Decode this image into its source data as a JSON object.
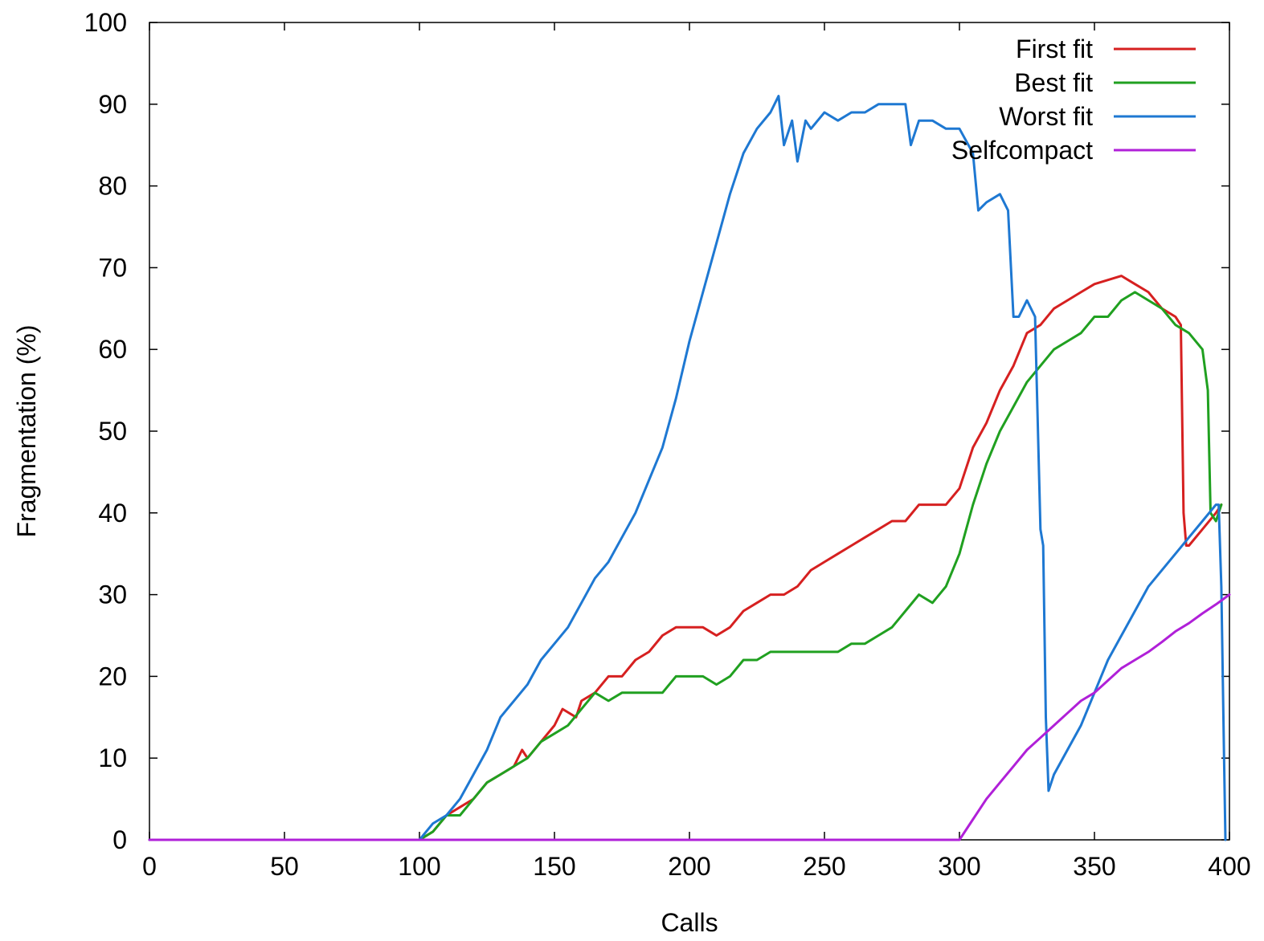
{
  "chart_data": {
    "type": "line",
    "title": "",
    "xlabel": "Calls",
    "ylabel": "Fragmentation (%)",
    "xlim": [
      0,
      400
    ],
    "ylim": [
      0,
      100
    ],
    "xticks": [
      0,
      50,
      100,
      150,
      200,
      250,
      300,
      350,
      400
    ],
    "yticks": [
      0,
      10,
      20,
      30,
      40,
      50,
      60,
      70,
      80,
      90,
      100
    ],
    "grid": false,
    "legend_position": "top-right",
    "series": [
      {
        "name": "First fit",
        "color": "#d62020",
        "points": [
          [
            0,
            0
          ],
          [
            100,
            0
          ],
          [
            105,
            1
          ],
          [
            110,
            3
          ],
          [
            115,
            4
          ],
          [
            120,
            5
          ],
          [
            125,
            7
          ],
          [
            130,
            8
          ],
          [
            135,
            9
          ],
          [
            138,
            11
          ],
          [
            140,
            10
          ],
          [
            145,
            12
          ],
          [
            150,
            14
          ],
          [
            153,
            16
          ],
          [
            158,
            15
          ],
          [
            160,
            17
          ],
          [
            165,
            18
          ],
          [
            170,
            20
          ],
          [
            175,
            20
          ],
          [
            180,
            22
          ],
          [
            185,
            23
          ],
          [
            190,
            25
          ],
          [
            195,
            26
          ],
          [
            200,
            26
          ],
          [
            205,
            26
          ],
          [
            210,
            25
          ],
          [
            215,
            26
          ],
          [
            220,
            28
          ],
          [
            225,
            29
          ],
          [
            230,
            30
          ],
          [
            235,
            30
          ],
          [
            240,
            31
          ],
          [
            245,
            33
          ],
          [
            250,
            34
          ],
          [
            255,
            35
          ],
          [
            260,
            36
          ],
          [
            265,
            37
          ],
          [
            270,
            38
          ],
          [
            275,
            39
          ],
          [
            280,
            39
          ],
          [
            285,
            41
          ],
          [
            290,
            41
          ],
          [
            295,
            41
          ],
          [
            300,
            43
          ],
          [
            305,
            48
          ],
          [
            310,
            51
          ],
          [
            315,
            55
          ],
          [
            320,
            58
          ],
          [
            325,
            62
          ],
          [
            330,
            63
          ],
          [
            335,
            65
          ],
          [
            340,
            66
          ],
          [
            345,
            67
          ],
          [
            350,
            68
          ],
          [
            355,
            68.5
          ],
          [
            360,
            69
          ],
          [
            365,
            68
          ],
          [
            370,
            67
          ],
          [
            375,
            65
          ],
          [
            380,
            64
          ],
          [
            382,
            63
          ],
          [
            383,
            40
          ],
          [
            384,
            36
          ],
          [
            385,
            36
          ],
          [
            390,
            38
          ],
          [
            395,
            40
          ],
          [
            397,
            41
          ]
        ]
      },
      {
        "name": "Best fit",
        "color": "#20a020",
        "points": [
          [
            0,
            0
          ],
          [
            100,
            0
          ],
          [
            105,
            1
          ],
          [
            110,
            3
          ],
          [
            115,
            3
          ],
          [
            120,
            5
          ],
          [
            125,
            7
          ],
          [
            130,
            8
          ],
          [
            135,
            9
          ],
          [
            140,
            10
          ],
          [
            145,
            12
          ],
          [
            150,
            13
          ],
          [
            155,
            14
          ],
          [
            160,
            16
          ],
          [
            165,
            18
          ],
          [
            170,
            17
          ],
          [
            175,
            18
          ],
          [
            180,
            18
          ],
          [
            185,
            18
          ],
          [
            190,
            18
          ],
          [
            195,
            20
          ],
          [
            200,
            20
          ],
          [
            205,
            20
          ],
          [
            210,
            19
          ],
          [
            215,
            20
          ],
          [
            220,
            22
          ],
          [
            225,
            22
          ],
          [
            230,
            23
          ],
          [
            235,
            23
          ],
          [
            240,
            23
          ],
          [
            245,
            23
          ],
          [
            250,
            23
          ],
          [
            255,
            23
          ],
          [
            260,
            24
          ],
          [
            265,
            24
          ],
          [
            270,
            25
          ],
          [
            275,
            26
          ],
          [
            280,
            28
          ],
          [
            285,
            30
          ],
          [
            290,
            29
          ],
          [
            295,
            31
          ],
          [
            300,
            35
          ],
          [
            305,
            41
          ],
          [
            310,
            46
          ],
          [
            315,
            50
          ],
          [
            320,
            53
          ],
          [
            325,
            56
          ],
          [
            330,
            58
          ],
          [
            335,
            60
          ],
          [
            340,
            61
          ],
          [
            345,
            62
          ],
          [
            350,
            64
          ],
          [
            355,
            64
          ],
          [
            360,
            66
          ],
          [
            365,
            67
          ],
          [
            370,
            66
          ],
          [
            375,
            65
          ],
          [
            380,
            63
          ],
          [
            385,
            62
          ],
          [
            390,
            60
          ],
          [
            392,
            55
          ],
          [
            393,
            40
          ],
          [
            395,
            39
          ],
          [
            397,
            41
          ]
        ]
      },
      {
        "name": "Worst fit",
        "color": "#1e78d2",
        "points": [
          [
            0,
            0
          ],
          [
            100,
            0
          ],
          [
            105,
            2
          ],
          [
            110,
            3
          ],
          [
            115,
            5
          ],
          [
            120,
            8
          ],
          [
            125,
            11
          ],
          [
            130,
            15
          ],
          [
            135,
            17
          ],
          [
            140,
            19
          ],
          [
            145,
            22
          ],
          [
            150,
            24
          ],
          [
            155,
            26
          ],
          [
            160,
            29
          ],
          [
            165,
            32
          ],
          [
            170,
            34
          ],
          [
            175,
            37
          ],
          [
            180,
            40
          ],
          [
            185,
            44
          ],
          [
            190,
            48
          ],
          [
            195,
            54
          ],
          [
            200,
            61
          ],
          [
            205,
            67
          ],
          [
            210,
            73
          ],
          [
            215,
            79
          ],
          [
            220,
            84
          ],
          [
            225,
            87
          ],
          [
            230,
            89
          ],
          [
            233,
            91
          ],
          [
            235,
            85
          ],
          [
            238,
            88
          ],
          [
            240,
            83
          ],
          [
            243,
            88
          ],
          [
            245,
            87
          ],
          [
            250,
            89
          ],
          [
            255,
            88
          ],
          [
            260,
            89
          ],
          [
            265,
            89
          ],
          [
            270,
            90
          ],
          [
            275,
            90
          ],
          [
            280,
            90
          ],
          [
            282,
            85
          ],
          [
            285,
            88
          ],
          [
            290,
            88
          ],
          [
            295,
            87
          ],
          [
            300,
            87
          ],
          [
            305,
            84
          ],
          [
            307,
            77
          ],
          [
            310,
            78
          ],
          [
            315,
            79
          ],
          [
            318,
            77
          ],
          [
            320,
            64
          ],
          [
            322,
            64
          ],
          [
            325,
            66
          ],
          [
            328,
            64
          ],
          [
            330,
            38
          ],
          [
            331,
            36
          ],
          [
            332,
            15
          ],
          [
            333,
            6
          ],
          [
            335,
            8
          ],
          [
            340,
            11
          ],
          [
            345,
            14
          ],
          [
            350,
            18
          ],
          [
            355,
            22
          ],
          [
            360,
            25
          ],
          [
            365,
            28
          ],
          [
            370,
            31
          ],
          [
            375,
            33
          ],
          [
            380,
            35
          ],
          [
            385,
            37
          ],
          [
            390,
            39
          ],
          [
            395,
            41
          ],
          [
            396,
            41
          ],
          [
            397,
            31
          ],
          [
            398,
            10
          ],
          [
            398.5,
            0
          ]
        ]
      },
      {
        "name": "Selfcompact",
        "color": "#b020d8",
        "points": [
          [
            0,
            0
          ],
          [
            300,
            0
          ],
          [
            305,
            2.5
          ],
          [
            310,
            5
          ],
          [
            315,
            7
          ],
          [
            320,
            9
          ],
          [
            325,
            11
          ],
          [
            330,
            12.5
          ],
          [
            335,
            14
          ],
          [
            340,
            15.5
          ],
          [
            345,
            17
          ],
          [
            350,
            18
          ],
          [
            355,
            19.5
          ],
          [
            360,
            21
          ],
          [
            365,
            22
          ],
          [
            370,
            23
          ],
          [
            375,
            24.2
          ],
          [
            380,
            25.5
          ],
          [
            385,
            26.5
          ],
          [
            390,
            27.7
          ],
          [
            395,
            28.8
          ],
          [
            400,
            30
          ]
        ]
      }
    ]
  }
}
